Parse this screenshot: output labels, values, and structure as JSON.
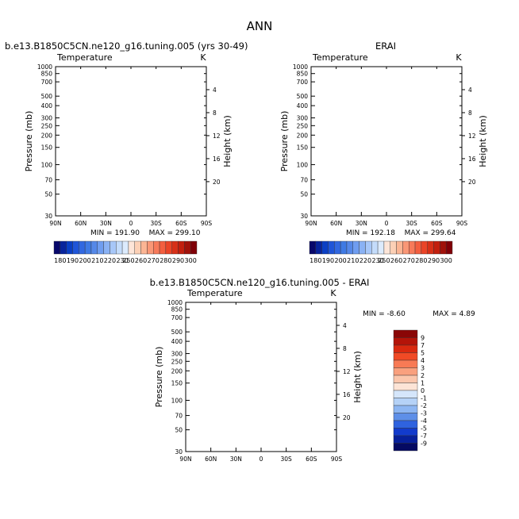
{
  "figure": {
    "title": "ANN"
  },
  "chart_data": [
    {
      "type": "heatmap",
      "panel": "model",
      "run_label": "b.e13.B1850C5CN.ne120_g16.tuning.005 (yrs 30-49)",
      "variable": "Temperature",
      "units": "K",
      "ylabel": "Pressure (mb)",
      "ylabel_right": "Height (km)",
      "pressure_ticks": [
        "30",
        "50",
        "70",
        "100",
        "150",
        "200",
        "250",
        "300",
        "400",
        "500",
        "700",
        "850",
        "1000"
      ],
      "height_ticks": [
        "20",
        "16",
        "12",
        "8",
        "4"
      ],
      "lat_ticks": [
        "90N",
        "60N",
        "30N",
        "0",
        "30S",
        "60S",
        "90S"
      ],
      "ylim": [
        1000,
        30
      ],
      "xlim": [
        90,
        -90
      ],
      "min_label": "MIN = 191.90",
      "max_label": "MAX = 299.10",
      "min": 191.9,
      "max": 299.1,
      "colorbar_labels": [
        "180",
        "190",
        "200",
        "210",
        "220",
        "230",
        "250",
        "260",
        "270",
        "280",
        "290",
        "300"
      ],
      "colorbar_levels": [
        180,
        185,
        190,
        195,
        200,
        205,
        210,
        215,
        220,
        225,
        230,
        240,
        250,
        255,
        260,
        265,
        270,
        275,
        280,
        285,
        290,
        295,
        300
      ]
    },
    {
      "type": "heatmap",
      "panel": "obs",
      "run_label": "ERAI",
      "variable": "Temperature",
      "units": "K",
      "ylabel": "Pressure (mb)",
      "ylabel_right": "Height (km)",
      "pressure_ticks": [
        "30",
        "50",
        "70",
        "100",
        "150",
        "200",
        "250",
        "300",
        "400",
        "500",
        "700",
        "850",
        "1000"
      ],
      "height_ticks": [
        "20",
        "16",
        "12",
        "8",
        "4"
      ],
      "lat_ticks": [
        "90N",
        "60N",
        "30N",
        "0",
        "30S",
        "60S",
        "90S"
      ],
      "ylim": [
        1000,
        30
      ],
      "xlim": [
        90,
        -90
      ],
      "min_label": "MIN = 192.18",
      "max_label": "MAX = 299.64",
      "min": 192.18,
      "max": 299.64,
      "colorbar_labels": [
        "180",
        "190",
        "200",
        "210",
        "220",
        "230",
        "250",
        "260",
        "270",
        "280",
        "290",
        "300"
      ],
      "colorbar_levels": [
        180,
        185,
        190,
        195,
        200,
        205,
        210,
        215,
        220,
        225,
        230,
        240,
        250,
        255,
        260,
        265,
        270,
        275,
        280,
        285,
        290,
        295,
        300
      ]
    },
    {
      "type": "heatmap",
      "panel": "difference",
      "run_label": "b.e13.B1850C5CN.ne120_g16.tuning.005 - ERAI",
      "variable": "Temperature",
      "units": "K",
      "ylabel": "Pressure (mb)",
      "ylabel_right": "Height (km)",
      "pressure_ticks": [
        "30",
        "50",
        "70",
        "100",
        "150",
        "200",
        "250",
        "300",
        "400",
        "500",
        "700",
        "850",
        "1000"
      ],
      "height_ticks": [
        "20",
        "16",
        "12",
        "8",
        "4"
      ],
      "lat_ticks": [
        "90N",
        "60N",
        "30N",
        "0",
        "30S",
        "60S",
        "90S"
      ],
      "ylim": [
        1000,
        30
      ],
      "xlim": [
        90,
        -90
      ],
      "min_label": "MIN =   -8.60",
      "max_label": "MAX =    4.89",
      "min": -8.6,
      "max": 4.89,
      "colorbar_labels": [
        "9",
        "7",
        "5",
        "4",
        "3",
        "2",
        "1",
        "0",
        "-1",
        "-2",
        "-3",
        "-4",
        "-5",
        "-7",
        "-9"
      ],
      "colorbar_levels": [
        9,
        7,
        5,
        4,
        3,
        2,
        1,
        0,
        -1,
        -2,
        -3,
        -4,
        -5,
        -7,
        -9
      ]
    }
  ],
  "colors": {
    "abs_scale": [
      "#08086b",
      "#08249c",
      "#0a3fc4",
      "#1f55d8",
      "#3168e0",
      "#3f7ae4",
      "#5588e8",
      "#6f9df0",
      "#8ab2f4",
      "#a7c7f8",
      "#c4dcfb",
      "#dcebfd",
      "#fde5d8",
      "#fcd0b6",
      "#fbb594",
      "#f99776",
      "#f77a5a",
      "#f35e3f",
      "#ea4427",
      "#d73018",
      "#c21f0e",
      "#a0110a",
      "#800008"
    ],
    "diff_scale": [
      "#8a0606",
      "#b41409",
      "#d9290f",
      "#f04a25",
      "#f87a55",
      "#f9a07e",
      "#fbc6ac",
      "#fde4d6",
      "#d5e6fb",
      "#b5d2f7",
      "#8db6f2",
      "#5e8fe8",
      "#2f63df",
      "#123bcc",
      "#07209b",
      "#050a62"
    ]
  }
}
